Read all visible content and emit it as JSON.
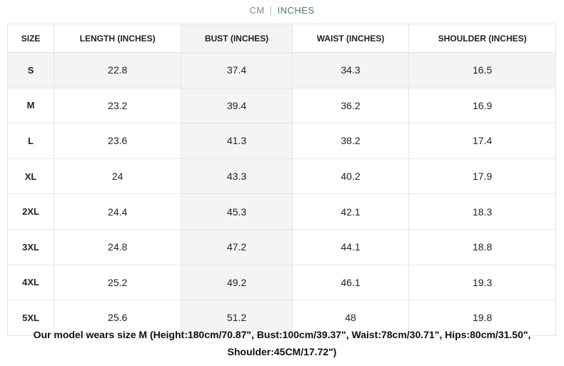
{
  "unit_toggle": {
    "cm": "CM",
    "separator": "|",
    "inches": "INCHES",
    "active": "INCHES",
    "active_color": "#3f7f72"
  },
  "table": {
    "headers": [
      "SIZE",
      "LENGTH (INCHES)",
      "BUST (INCHES)",
      "WAIST (INCHES)",
      "SHOULDER (INCHES)"
    ],
    "rows": [
      [
        "S",
        "22.8",
        "37.4",
        "34.3",
        "16.5"
      ],
      [
        "M",
        "23.2",
        "39.4",
        "36.2",
        "16.9"
      ],
      [
        "L",
        "23.6",
        "41.3",
        "38.2",
        "17.4"
      ],
      [
        "XL",
        "24",
        "43.3",
        "40.2",
        "17.9"
      ],
      [
        "2XL",
        "24.4",
        "45.3",
        "42.1",
        "18.3"
      ],
      [
        "3XL",
        "24.8",
        "47.2",
        "44.1",
        "18.8"
      ],
      [
        "4XL",
        "25.2",
        "49.2",
        "46.1",
        "19.3"
      ],
      [
        "5XL",
        "25.6",
        "51.2",
        "48",
        "19.8"
      ]
    ]
  },
  "note": {
    "line1": "Our model wears size M (Height:180cm/70.87\", Bust:100cm/39.37\", Waist:78cm/30.71\", Hips:80cm/31.50\",",
    "line2": "Shoulder:45CM/17.72\")"
  }
}
